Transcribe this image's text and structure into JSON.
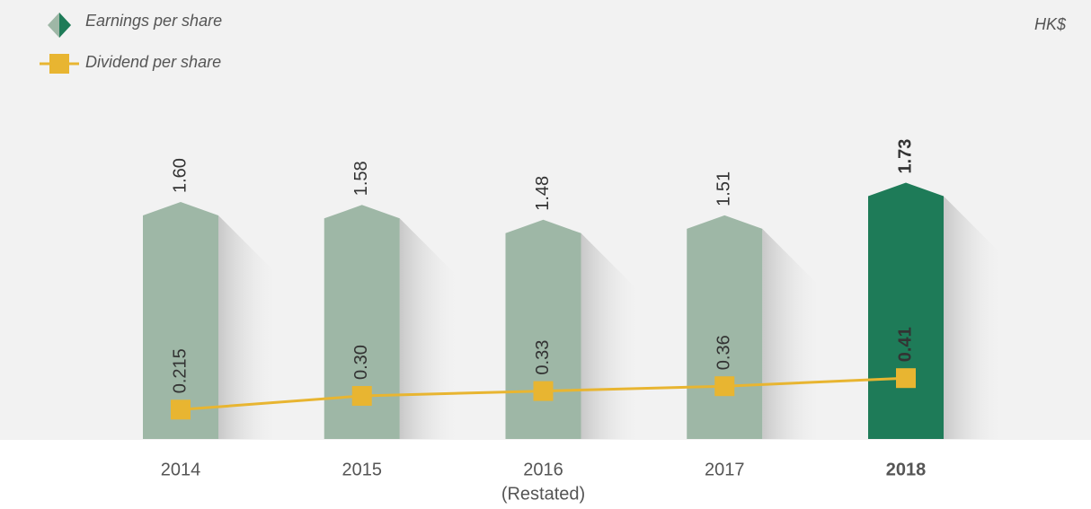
{
  "chart_data": {
    "type": "bar_line",
    "unit": "HK$",
    "categories": [
      "2014",
      "2015",
      "2016",
      "2017",
      "2018"
    ],
    "category_notes": [
      null,
      null,
      "(Restated)",
      null,
      null
    ],
    "series": [
      {
        "name": "Earnings per share",
        "type": "bar",
        "color": "#9eb7a6",
        "colors": [
          "#9eb7a6",
          "#9eb7a6",
          "#9eb7a6",
          "#9eb7a6",
          "#1e7b58"
        ],
        "values": [
          1.6,
          1.58,
          1.48,
          1.51,
          1.73
        ],
        "value_labels": [
          "1.60",
          "1.58",
          "1.48",
          "1.51",
          "1.73"
        ]
      },
      {
        "name": "Dividend per share",
        "type": "line",
        "color": "#e8b531",
        "values": [
          0.215,
          0.3,
          0.33,
          0.36,
          0.41
        ],
        "value_labels": [
          "0.215",
          "0.30",
          "0.33",
          "0.36",
          "0.41"
        ]
      }
    ]
  }
}
